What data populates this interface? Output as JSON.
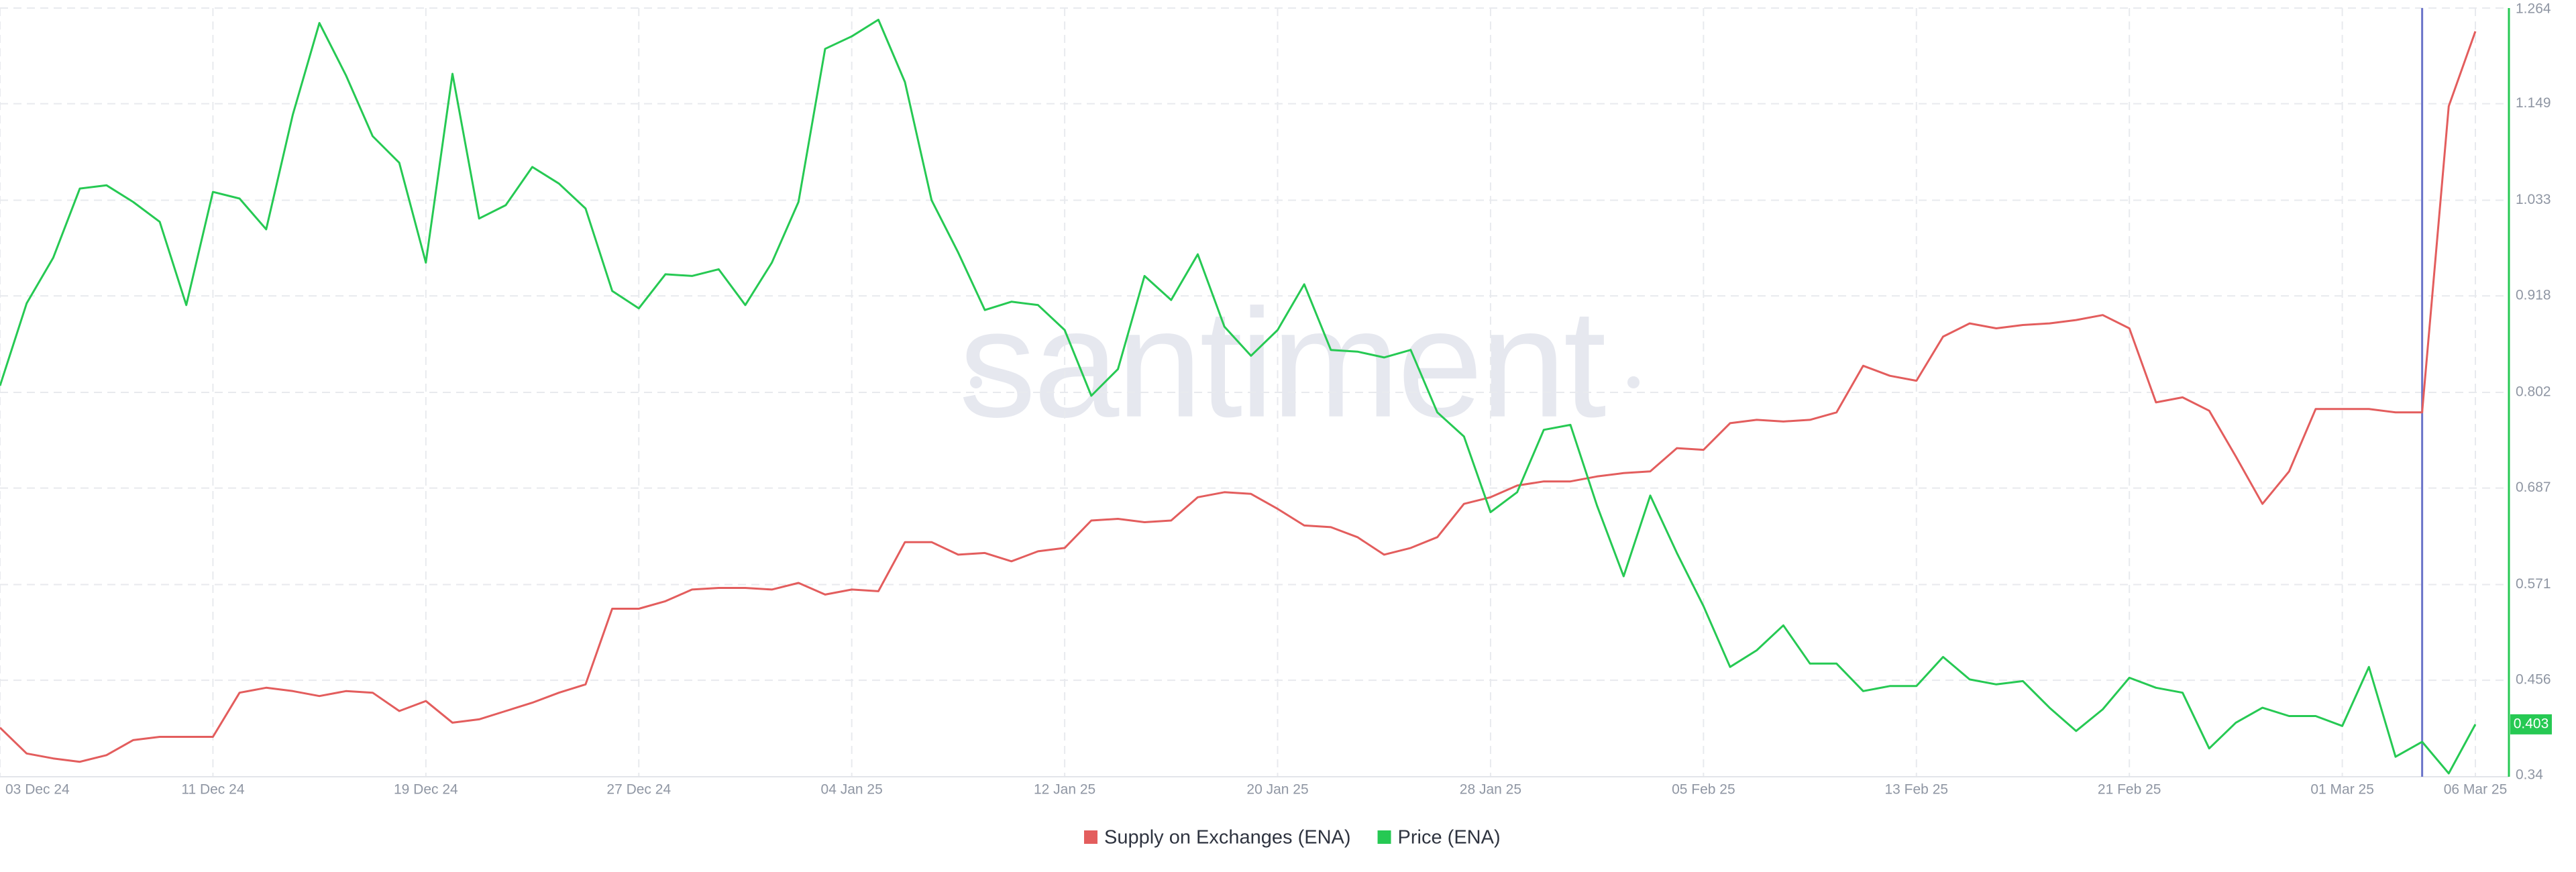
{
  "chart_data": {
    "type": "line",
    "watermark": "santiment",
    "categories": [
      "03 Dec 24",
      null,
      null,
      null,
      null,
      null,
      null,
      null,
      "11 Dec 24",
      null,
      null,
      null,
      null,
      null,
      null,
      null,
      "19 Dec 24",
      null,
      null,
      null,
      null,
      null,
      null,
      null,
      "27 Dec 24",
      null,
      null,
      null,
      null,
      null,
      null,
      null,
      "04 Jan 25",
      null,
      null,
      null,
      null,
      null,
      null,
      null,
      "12 Jan 25",
      null,
      null,
      null,
      null,
      null,
      null,
      null,
      "20 Jan 25",
      null,
      null,
      null,
      null,
      null,
      null,
      null,
      "28 Jan 25",
      null,
      null,
      null,
      null,
      null,
      null,
      null,
      "05 Feb 25",
      null,
      null,
      null,
      null,
      null,
      null,
      null,
      "13 Feb 25",
      null,
      null,
      null,
      null,
      null,
      null,
      null,
      "21 Feb 25",
      null,
      null,
      null,
      null,
      null,
      null,
      null,
      "01 Mar 25",
      null,
      null,
      null,
      null,
      "06 Mar 25"
    ],
    "series": [
      {
        "name": "Supply on Exchanges (ENA)",
        "color": "#e35d5d",
        "values": [
          0.399,
          0.368,
          0.362,
          0.358,
          0.366,
          0.384,
          0.388,
          0.388,
          0.388,
          0.441,
          0.447,
          0.443,
          0.437,
          0.443,
          0.441,
          0.419,
          0.431,
          0.405,
          0.409,
          0.419,
          0.429,
          0.441,
          0.451,
          0.542,
          0.542,
          0.551,
          0.565,
          0.567,
          0.567,
          0.565,
          0.573,
          0.559,
          0.565,
          0.563,
          0.622,
          0.622,
          0.607,
          0.609,
          0.599,
          0.611,
          0.615,
          0.648,
          0.65,
          0.646,
          0.648,
          0.676,
          0.682,
          0.68,
          0.662,
          0.642,
          0.64,
          0.628,
          0.607,
          0.615,
          0.628,
          0.668,
          0.676,
          0.69,
          0.695,
          0.695,
          0.701,
          0.705,
          0.707,
          0.735,
          0.733,
          0.765,
          0.769,
          0.767,
          0.769,
          0.778,
          0.834,
          0.822,
          0.816,
          0.869,
          0.885,
          0.879,
          0.883,
          0.885,
          0.889,
          0.895,
          0.879,
          0.79,
          0.796,
          0.78,
          0.725,
          0.668,
          0.707,
          0.782,
          0.782,
          0.782,
          0.778,
          0.778,
          1.146,
          1.236
        ]
      },
      {
        "name": "Price (ENA)",
        "color": "#26c953",
        "values": [
          0.81,
          0.909,
          0.964,
          1.047,
          1.051,
          1.031,
          1.007,
          0.907,
          1.043,
          1.035,
          0.998,
          1.136,
          1.246,
          1.183,
          1.11,
          1.078,
          0.958,
          1.185,
          1.011,
          1.027,
          1.073,
          1.053,
          1.023,
          0.924,
          0.903,
          0.944,
          0.942,
          0.95,
          0.907,
          0.958,
          1.031,
          1.215,
          1.23,
          1.25,
          1.175,
          1.033,
          0.97,
          0.901,
          0.911,
          0.907,
          0.877,
          0.798,
          0.83,
          0.942,
          0.913,
          0.968,
          0.881,
          0.846,
          0.877,
          0.932,
          0.853,
          0.851,
          0.844,
          0.853,
          0.778,
          0.749,
          0.658,
          0.682,
          0.757,
          0.763,
          0.666,
          0.581,
          0.678,
          0.609,
          0.545,
          0.472,
          0.492,
          0.522,
          0.476,
          0.476,
          0.443,
          0.449,
          0.449,
          0.484,
          0.457,
          0.451,
          0.455,
          0.423,
          0.395,
          0.421,
          0.459,
          0.447,
          0.441,
          0.374,
          0.405,
          0.423,
          0.413,
          0.413,
          0.401,
          0.472,
          0.364,
          0.382,
          0.344,
          0.403
        ]
      }
    ],
    "ylim": [
      0.34,
      1.264
    ],
    "yticks": [
      0.34,
      0.456,
      0.571,
      0.687,
      0.802,
      0.918,
      1.033,
      1.149,
      1.264
    ],
    "yaxis_position": "right",
    "grid": true
  }
}
